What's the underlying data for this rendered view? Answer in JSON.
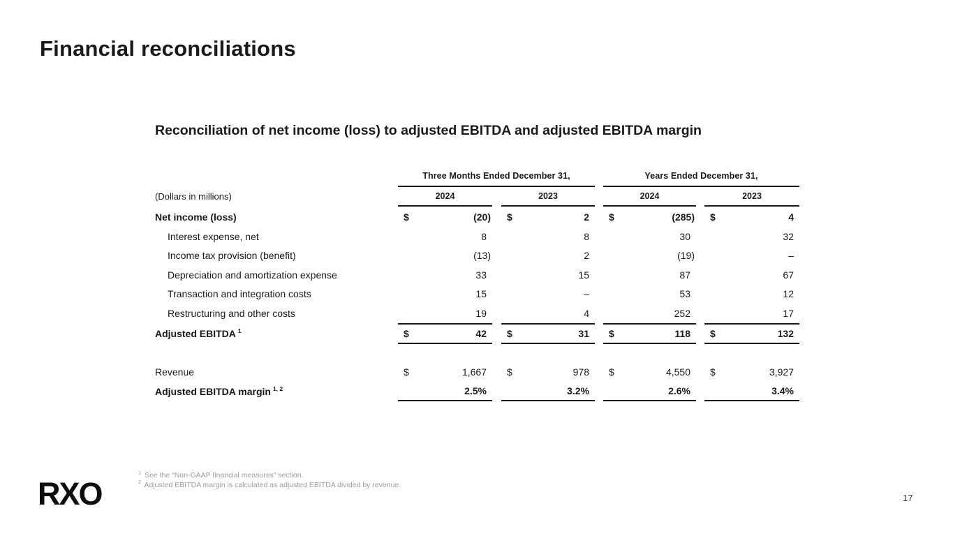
{
  "colors": {
    "text": "#1a1a1a",
    "muted": "#9c9c9c",
    "line": "#1a1a1a",
    "page": "#3a3a3a"
  },
  "slide": {
    "title": "Financial reconciliations",
    "page_number": "17",
    "logo": "RXO"
  },
  "table": {
    "title": "Reconciliation of net income (loss) to adjusted EBITDA and adjusted EBITDA margin",
    "units_note": "(Dollars in millions)",
    "currency_symbol": "$",
    "column_groups": [
      {
        "label": "Three Months Ended December 31,",
        "years": [
          "2024",
          "2023"
        ]
      },
      {
        "label": "Years Ended December 31,",
        "years": [
          "2024",
          "2023"
        ]
      }
    ],
    "rows": [
      {
        "label": "Net income (loss)",
        "bold": true,
        "dollar": true,
        "first": true,
        "values": [
          "(20)",
          "2",
          "(285)",
          "4"
        ]
      },
      {
        "label": "Interest expense, net",
        "indent": true,
        "values": [
          "8",
          "8",
          "30",
          "32"
        ]
      },
      {
        "label": "Income tax provision (benefit)",
        "indent": true,
        "values": [
          "(13)",
          "2",
          "(19)",
          "–"
        ]
      },
      {
        "label": "Depreciation and amortization expense",
        "indent": true,
        "values": [
          "33",
          "15",
          "87",
          "67"
        ]
      },
      {
        "label": "Transaction and integration costs",
        "indent": true,
        "values": [
          "15",
          "–",
          "53",
          "12"
        ]
      },
      {
        "label": "Restructuring and other costs",
        "indent": true,
        "values": [
          "19",
          "4",
          "252",
          "17"
        ]
      },
      {
        "label": "Adjusted EBITDA",
        "sup": "1",
        "bold": true,
        "dollar": true,
        "total": true,
        "values": [
          "42",
          "31",
          "118",
          "132"
        ]
      },
      {
        "label": "Revenue",
        "dollar": true,
        "spacer_before": true,
        "values": [
          "1,667",
          "978",
          "4,550",
          "3,927"
        ]
      },
      {
        "label": "Adjusted EBITDA margin",
        "sup": "1, 2",
        "bold": true,
        "underline": true,
        "values": [
          "2.5%",
          "3.2%",
          "2.6%",
          "3.4%"
        ]
      }
    ]
  },
  "footnotes": [
    {
      "sup": "1",
      "text": "See the “Non-GAAP financial measures” section."
    },
    {
      "sup": "2",
      "text": "Adjusted EBITDA margin is calculated as adjusted EBITDA divided by revenue."
    }
  ]
}
